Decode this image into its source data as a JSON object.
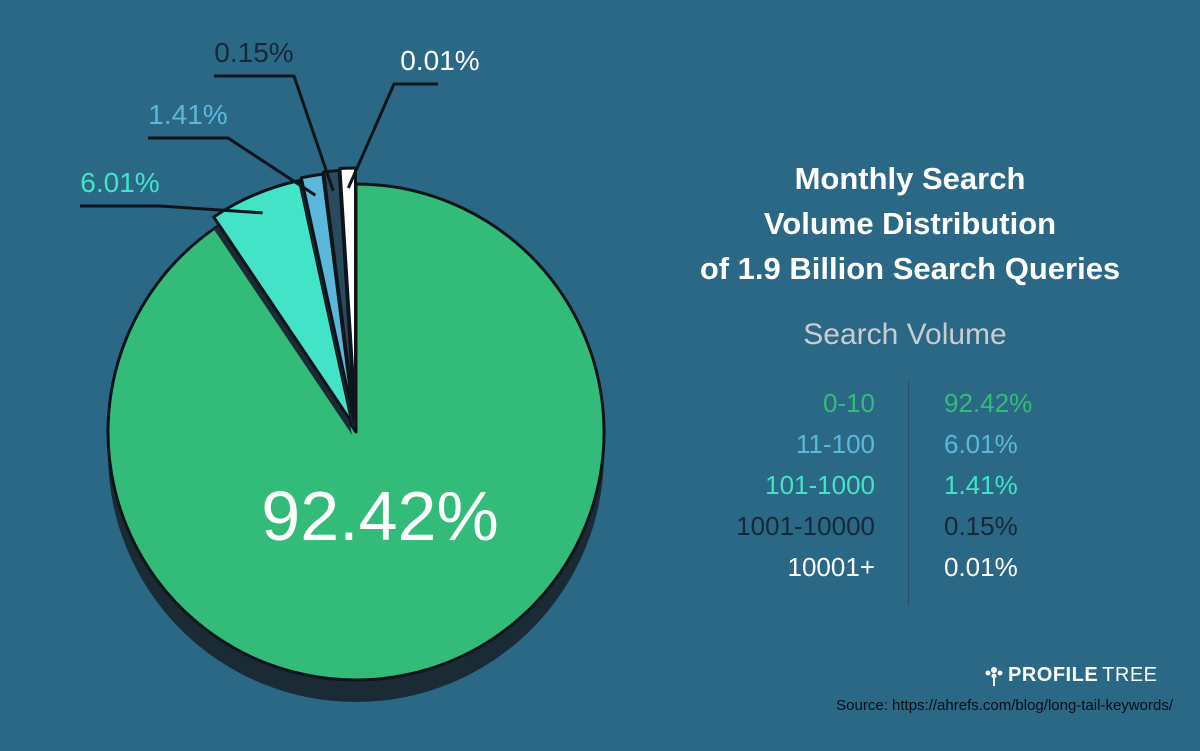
{
  "chart_data": {
    "type": "pie",
    "title": [
      "Monthly Search",
      "Volume Distribution",
      "of 1.9 Billion Search Queries"
    ],
    "legend_title": "Search Volume",
    "slices": [
      {
        "label": "0-10",
        "value": 92.42,
        "value_label": "92.42%",
        "color": "#33bb7a"
      },
      {
        "label": "11-100",
        "value": 6.01,
        "value_label": "6.01%",
        "color": "#42e3c6"
      },
      {
        "label": "101-1000",
        "value": 1.41,
        "value_label": "1.41%",
        "color": "#5bb8da"
      },
      {
        "label": "1001-10000",
        "value": 0.15,
        "value_label": "0.15%",
        "color": "#2a4a5e"
      },
      {
        "label": "10001+",
        "value": 0.01,
        "value_label": "0.01%",
        "color": "#ffffff"
      }
    ],
    "legend_rows": [
      {
        "range": "0-10",
        "pct": "92.42%",
        "color": "#33bb7a"
      },
      {
        "range": "11-100",
        "pct": "6.01%",
        "color": "#5bb8da"
      },
      {
        "range": "101-1000",
        "pct": "1.41%",
        "color": "#42e3c6"
      },
      {
        "range": "1001-10000",
        "pct": "0.15%",
        "color": "#16293a"
      },
      {
        "range": "10001+",
        "pct": "0.01%",
        "color": "#ffffff"
      }
    ],
    "callout_colors": {
      "6.01%": "#42e3c6",
      "1.41%": "#5bb8da",
      "0.15%": "#16293a",
      "0.01%": "#ffffff"
    }
  },
  "branding": {
    "name_bold": "PROFILE",
    "name_light": "TREE",
    "icon": "tree-icon"
  },
  "source": "Source: https://ahrefs.com/blog/long-tail-keywords/",
  "colors": {
    "background": "#2b6886",
    "shadow": "#1b2b36",
    "outline": "#0d151b"
  }
}
